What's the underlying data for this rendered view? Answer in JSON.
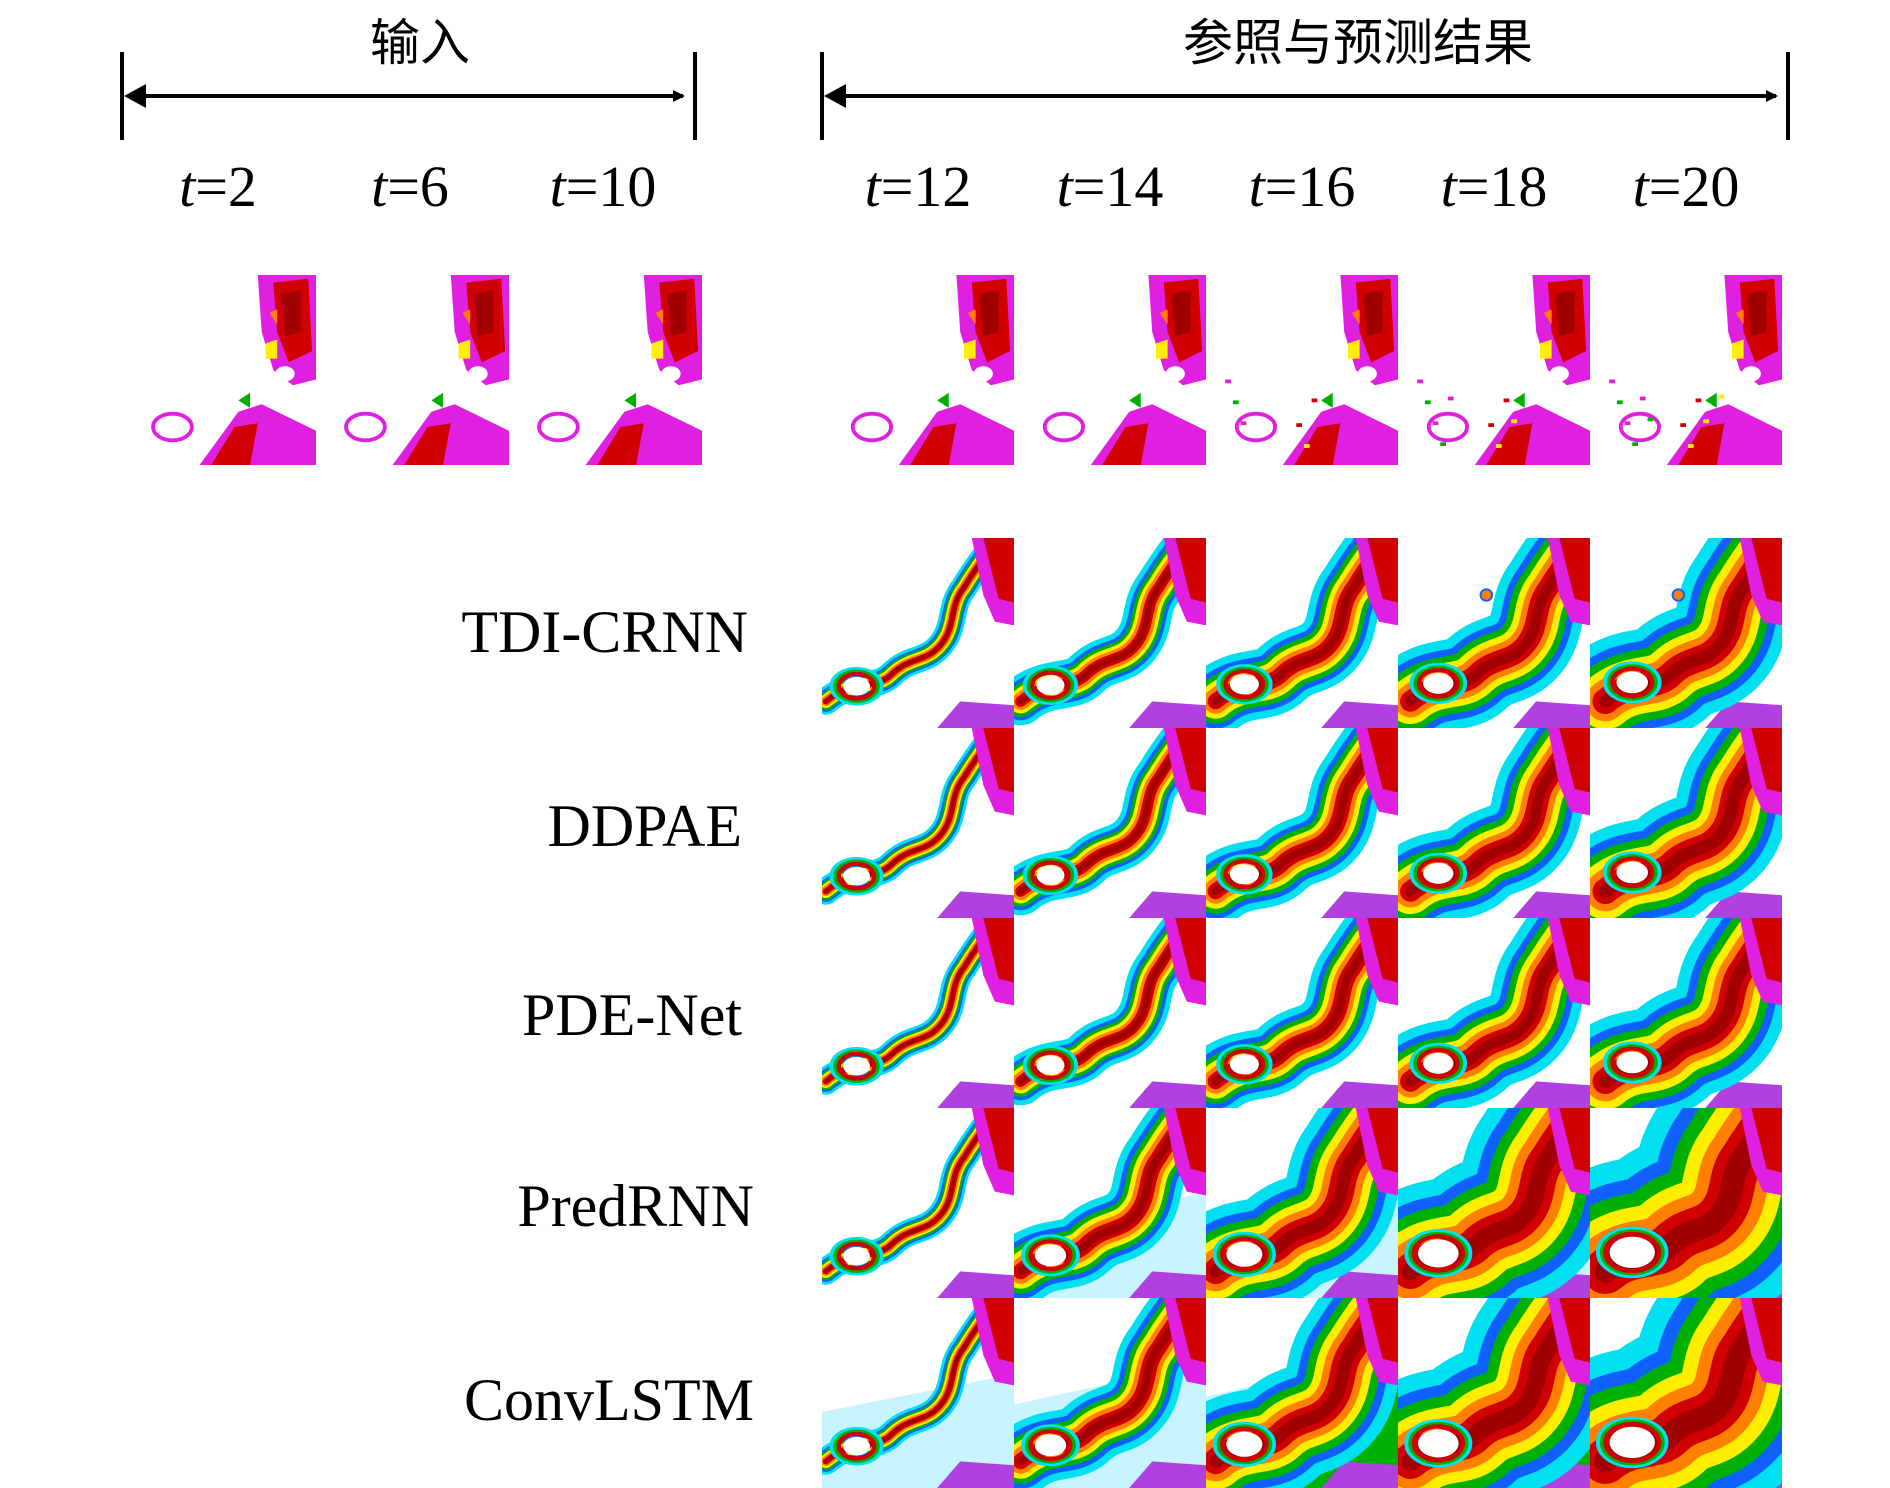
{
  "headers": {
    "input": "输入",
    "reference_and_prediction": "参照与预测结果"
  },
  "input_times": [
    {
      "prefix": "t",
      "eq": "=2"
    },
    {
      "prefix": "t",
      "eq": "=6"
    },
    {
      "prefix": "t",
      "eq": "=10"
    }
  ],
  "output_times": [
    {
      "prefix": "t",
      "eq": "=12"
    },
    {
      "prefix": "t",
      "eq": "=14"
    },
    {
      "prefix": "t",
      "eq": "=16"
    },
    {
      "prefix": "t",
      "eq": "=18"
    },
    {
      "prefix": "t",
      "eq": "=20"
    }
  ],
  "models": [
    "TDI-CRNN",
    "DDPAE",
    "PDE-Net",
    "PredRNN",
    "ConvLSTM"
  ],
  "colors": {
    "magenta": "#e020e0",
    "violet": "#b040e0",
    "red": "#d00000",
    "darkred": "#a00000",
    "orange": "#ff8000",
    "yellow": "#ffee00",
    "green": "#00b000",
    "cyan": "#00e0f0",
    "blue": "#1060ff",
    "paleblue": "#c8f4ff"
  }
}
